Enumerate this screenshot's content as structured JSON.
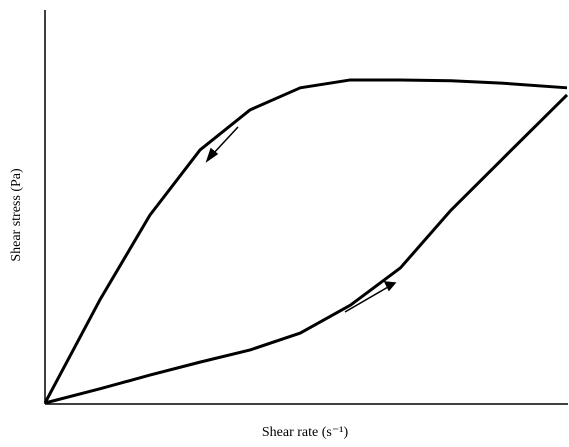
{
  "chart_data": {
    "type": "line",
    "x_label": "Shear rate (s⁻¹)",
    "y_label": "Shear stress (Pa)",
    "x": [
      0,
      10.5,
      20.1,
      29.7,
      39.3,
      48.9,
      58.5,
      68.1,
      77.8,
      87.4,
      100
    ],
    "xlim": [
      0,
      100
    ],
    "ylim": [
      0,
      100
    ],
    "series": [
      {
        "color": "#000000",
        "values": [
          0,
          26.2,
          47.8,
          64.4,
          74.6,
          80.2,
          82.2,
          82.2,
          82.0,
          81.4,
          80.2
        ]
      },
      {
        "color": "#000000",
        "values": [
          0,
          3.6,
          7.1,
          10.4,
          13.5,
          17.8,
          24.9,
          34.4,
          49.1,
          61.8,
          78.4
        ]
      }
    ]
  }
}
